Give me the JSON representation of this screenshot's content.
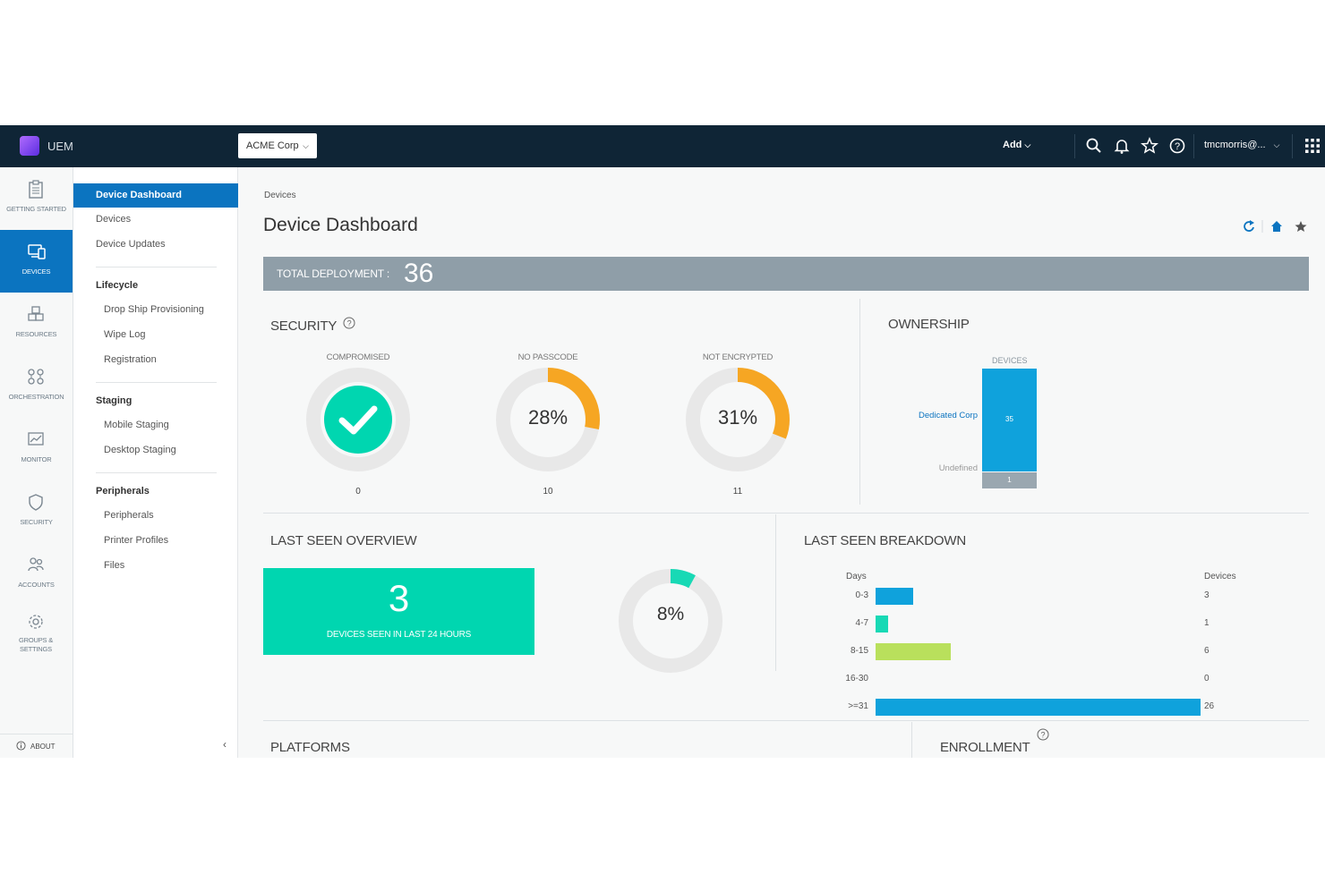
{
  "app": {
    "name": "UEM",
    "org": "ACME Corp",
    "add_label": "Add",
    "user": "tmcmorris@..."
  },
  "rail": {
    "items": [
      {
        "label": "GETTING STARTED"
      },
      {
        "label": "DEVICES"
      },
      {
        "label": "RESOURCES"
      },
      {
        "label": "ORCHESTRATION"
      },
      {
        "label": "MONITOR"
      },
      {
        "label": "SECURITY"
      },
      {
        "label": "ACCOUNTS"
      },
      {
        "label": "GROUPS & SETTINGS"
      }
    ],
    "about": "ABOUT"
  },
  "subnav": {
    "top": [
      "Device Dashboard",
      "Devices",
      "Device Updates"
    ],
    "lifecycle": {
      "head": "Lifecycle",
      "items": [
        "Drop Ship Provisioning",
        "Wipe Log",
        "Registration"
      ]
    },
    "staging": {
      "head": "Staging",
      "items": [
        "Mobile Staging",
        "Desktop Staging"
      ]
    },
    "peripherals": {
      "head": "Peripherals",
      "items": [
        "Peripherals",
        "Printer Profiles",
        "Files"
      ]
    },
    "collapse": "‹"
  },
  "page": {
    "breadcrumb": "Devices",
    "title": "Device Dashboard"
  },
  "deployment": {
    "label": "TOTAL DEPLOYMENT :",
    "value": "36"
  },
  "security": {
    "title": "SECURITY",
    "gauges": [
      {
        "title": "COMPROMISED",
        "count": "0",
        "percent": 0,
        "display": ""
      },
      {
        "title": "NO PASSCODE",
        "count": "10",
        "percent": 28,
        "display": "28%"
      },
      {
        "title": "NOT ENCRYPTED",
        "count": "11",
        "percent": 31,
        "display": "31%"
      }
    ]
  },
  "ownership": {
    "title": "OWNERSHIP",
    "axis": "DEVICES",
    "bars": [
      {
        "label": "Dedicated Corp",
        "value": 35,
        "display": "35"
      },
      {
        "label": "Undefined",
        "value": 1,
        "display": "1"
      }
    ]
  },
  "last_seen_overview": {
    "title": "LAST SEEN OVERVIEW",
    "count": "3",
    "count_label": "DEVICES SEEN IN LAST 24 HOURS",
    "percent": 8,
    "percent_display": "8%"
  },
  "last_seen_breakdown": {
    "title": "LAST SEEN BREAKDOWN",
    "x_head": "Days",
    "y_head": "Devices",
    "rows": [
      {
        "label": "0-3",
        "value": 3,
        "display": "3",
        "color": "#0fa2dc"
      },
      {
        "label": "4-7",
        "value": 1,
        "display": "1",
        "color": "#18d9b5"
      },
      {
        "label": "8-15",
        "value": 6,
        "display": "6",
        "color": "#b9e05c"
      },
      {
        "label": "16-30",
        "value": 0,
        "display": "0",
        "color": "#0fa2dc"
      },
      {
        "label": ">=31",
        "value": 26,
        "display": "26",
        "color": "#0fa2dc"
      }
    ]
  },
  "platforms": {
    "title": "PLATFORMS"
  },
  "enrollment": {
    "title": "ENROLLMENT"
  },
  "colors": {
    "accent": "#0b74c0",
    "topbar": "#0f2536",
    "orange": "#f6a623",
    "teal": "#00d6b0",
    "gauge_track": "#e8e8e8"
  }
}
